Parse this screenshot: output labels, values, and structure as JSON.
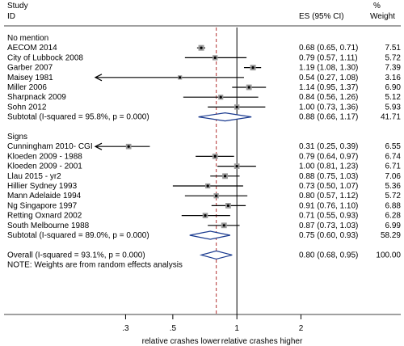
{
  "chart_data": {
    "type": "forest",
    "header": {
      "study": "Study",
      "id": "ID",
      "es": "ES (95% CI)",
      "pct": "%",
      "weight": "Weight"
    },
    "x_scale": "log",
    "xlim": [
      0.18,
      2.5
    ],
    "null_line": 1,
    "overall_line": 0.8,
    "ticks": [
      {
        "value": 0.3,
        "label": ".3"
      },
      {
        "value": 0.5,
        "label": ".5"
      },
      {
        "value": 1,
        "label": "1"
      },
      {
        "value": 2,
        "label": "2"
      }
    ],
    "xlabel_left": "relative crashes lower",
    "xlabel_right": "relative crashes higher",
    "groups": [
      {
        "label": "No mention",
        "studies": [
          {
            "name": "AECOM 2014",
            "es": 0.68,
            "lo": 0.65,
            "hi": 0.71,
            "es_text": "0.68 (0.65, 0.71)",
            "weight": 7.51,
            "weight_text": "7.51"
          },
          {
            "name": "City of Lubbock 2008",
            "es": 0.79,
            "lo": 0.57,
            "hi": 1.11,
            "es_text": "0.79 (0.57, 1.11)",
            "weight": 5.72,
            "weight_text": "5.72"
          },
          {
            "name": "Garber 2007",
            "es": 1.19,
            "lo": 1.08,
            "hi": 1.3,
            "es_text": "1.19 (1.08, 1.30)",
            "weight": 7.39,
            "weight_text": "7.39"
          },
          {
            "name": "Maisey 1981",
            "es": 0.54,
            "lo": 0.27,
            "hi": 1.08,
            "es_text": "0.54 (0.27, 1.08)",
            "weight": 3.16,
            "weight_text": "3.16"
          },
          {
            "name": "Miller 2006",
            "es": 1.14,
            "lo": 0.95,
            "hi": 1.37,
            "es_text": "1.14 (0.95, 1.37)",
            "weight": 6.9,
            "weight_text": "6.90"
          },
          {
            "name": "Sharpnack 2009",
            "es": 0.84,
            "lo": 0.56,
            "hi": 1.26,
            "es_text": "0.84 (0.56, 1.26)",
            "weight": 5.12,
            "weight_text": "5.12"
          },
          {
            "name": "Sohn 2012",
            "es": 1.0,
            "lo": 0.73,
            "hi": 1.36,
            "es_text": "1.00 (0.73, 1.36)",
            "weight": 5.93,
            "weight_text": "5.93"
          }
        ],
        "subtotal": {
          "label": "Subtotal  (I-squared = 95.8%, p = 0.000)",
          "es": 0.88,
          "lo": 0.66,
          "hi": 1.17,
          "es_text": "0.88 (0.66, 1.17)",
          "weight_text": "41.71"
        }
      },
      {
        "label": "Signs",
        "studies": [
          {
            "name": "Cunningham 2010- CGI",
            "es": 0.31,
            "lo": 0.25,
            "hi": 0.39,
            "es_text": "0.31 (0.25, 0.39)",
            "weight": 6.55,
            "weight_text": "6.55"
          },
          {
            "name": "Kloeden 2009 - 1988",
            "es": 0.79,
            "lo": 0.64,
            "hi": 0.97,
            "es_text": "0.79 (0.64, 0.97)",
            "weight": 6.74,
            "weight_text": "6.74"
          },
          {
            "name": "Kloeden 2009 - 2001",
            "es": 1.0,
            "lo": 0.81,
            "hi": 1.23,
            "es_text": "1.00 (0.81, 1.23)",
            "weight": 6.71,
            "weight_text": "6.71"
          },
          {
            "name": "Llau 2015 - yr2",
            "es": 0.88,
            "lo": 0.75,
            "hi": 1.03,
            "es_text": "0.88 (0.75, 1.03)",
            "weight": 7.06,
            "weight_text": "7.06"
          },
          {
            "name": "Hillier Sydney 1993",
            "es": 0.73,
            "lo": 0.5,
            "hi": 1.07,
            "es_text": "0.73 (0.50, 1.07)",
            "weight": 5.36,
            "weight_text": "5.36"
          },
          {
            "name": "Mann Adelaide 1994",
            "es": 0.8,
            "lo": 0.57,
            "hi": 1.12,
            "es_text": "0.80 (0.57, 1.12)",
            "weight": 5.72,
            "weight_text": "5.72"
          },
          {
            "name": "Ng Singapore 1997",
            "es": 0.91,
            "lo": 0.76,
            "hi": 1.1,
            "es_text": "0.91 (0.76, 1.10)",
            "weight": 6.88,
            "weight_text": "6.88"
          },
          {
            "name": "Retting Oxnard 2002",
            "es": 0.71,
            "lo": 0.55,
            "hi": 0.93,
            "es_text": "0.71 (0.55, 0.93)",
            "weight": 6.28,
            "weight_text": "6.28"
          },
          {
            "name": "South Melbourne 1988",
            "es": 0.87,
            "lo": 0.73,
            "hi": 1.03,
            "es_text": "0.87 (0.73, 1.03)",
            "weight": 6.99,
            "weight_text": "6.99"
          }
        ],
        "subtotal": {
          "label": "Subtotal  (I-squared = 89.0%, p = 0.000)",
          "es": 0.75,
          "lo": 0.6,
          "hi": 0.93,
          "es_text": "0.75 (0.60, 0.93)",
          "weight_text": "58.29"
        }
      }
    ],
    "overall": {
      "label": "Overall  (I-squared = 93.1%, p = 0.000)",
      "es": 0.8,
      "lo": 0.68,
      "hi": 0.95,
      "es_text": "0.80 (0.68, 0.95)",
      "weight_text": "100.00"
    },
    "note": "NOTE: Weights are from random effects analysis",
    "colors": {
      "diamond": "#1a3a8f",
      "dashed_line": "#b03030",
      "marker": "#000000"
    }
  }
}
